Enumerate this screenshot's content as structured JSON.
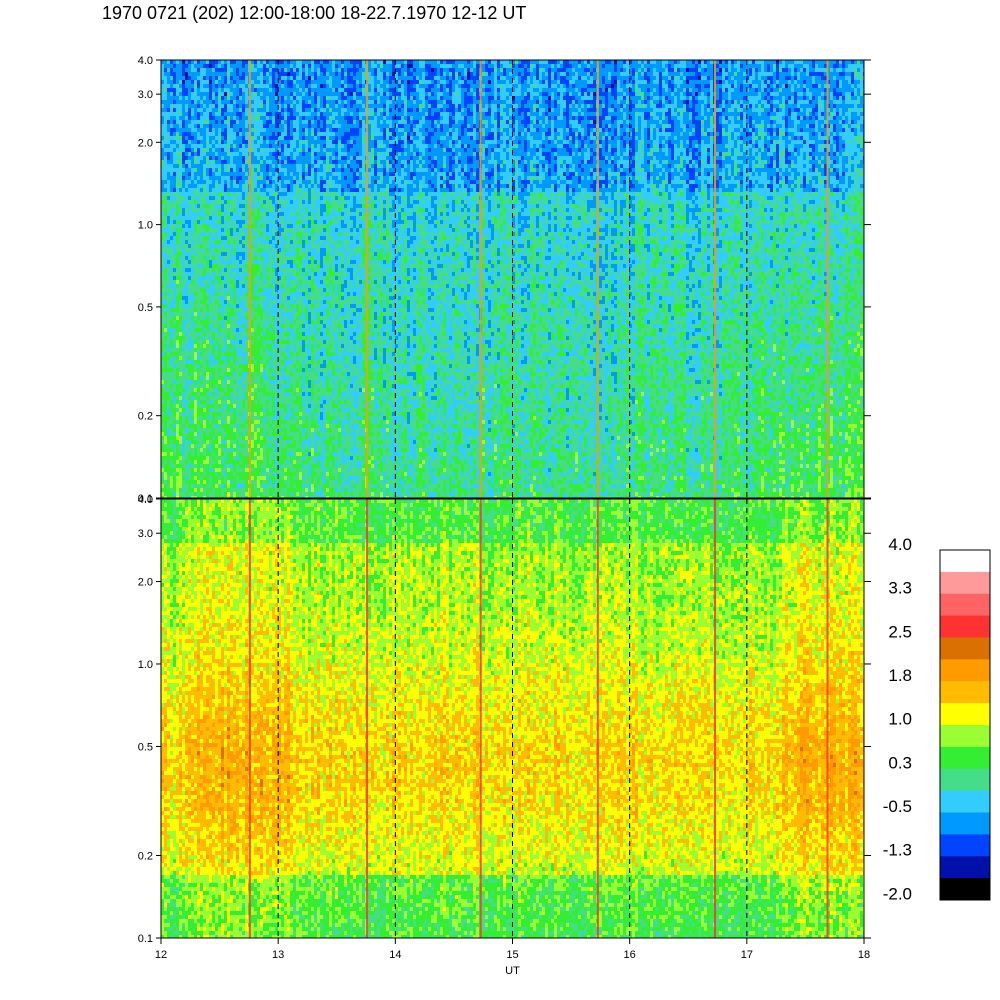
{
  "title": "1970 0721 (202) 12:00-18:00 18-22.7.1970  12-12 UT",
  "chart_data": [
    {
      "type": "heatmap",
      "panel": "top",
      "x_range": [
        12,
        18
      ],
      "y_range": [
        0.1,
        4.0
      ],
      "y_scale": "log",
      "y_ticks": [
        "0.1",
        "0.2",
        "0.5",
        "1.0",
        "2.0",
        "3.0",
        "4.0"
      ],
      "x_ticks": [],
      "vertical_dashed_lines": [
        13,
        14,
        15,
        16,
        17
      ],
      "dominant_levels": "mostly 0.3 to 1.0, some -0.5 to -1.3"
    },
    {
      "type": "heatmap",
      "panel": "bottom",
      "x_range": [
        12,
        18
      ],
      "y_range": [
        0.1,
        4.0
      ],
      "y_scale": "log",
      "y_ticks": [
        "0.1",
        "0.2",
        "0.5",
        "1.0",
        "2.0",
        "3.0",
        "4.0"
      ],
      "x_ticks": [
        "12",
        "13",
        "14",
        "15",
        "16",
        "17",
        "18"
      ],
      "xlabel": "UT",
      "vertical_dashed_lines": [
        13,
        14,
        15,
        16,
        17
      ],
      "dominant_levels": "mostly 1.0 to 2.5"
    }
  ],
  "colorbar": {
    "labels": [
      "4.0",
      "3.3",
      "2.5",
      "1.8",
      "1.0",
      "0.3",
      "-0.5",
      "-1.3",
      "-2.0"
    ],
    "colors": [
      "#ffffff",
      "#ff9a9a",
      "#ff6464",
      "#ff3232",
      "#d97000",
      "#ff9a00",
      "#ffbb00",
      "#ffff00",
      "#99ff33",
      "#33ee33",
      "#44dd88",
      "#33ccff",
      "#0099ff",
      "#0044ff",
      "#0011aa",
      "#000000"
    ]
  }
}
